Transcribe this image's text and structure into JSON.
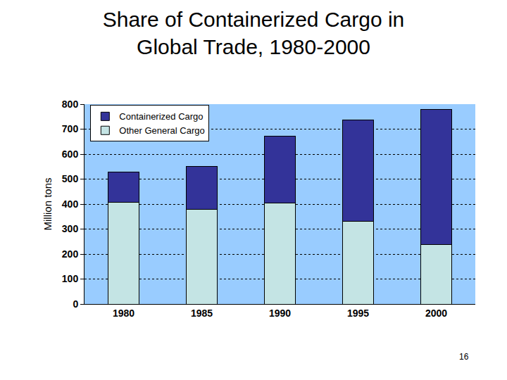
{
  "chart_data": {
    "type": "bar",
    "title": "Share of Containerized Cargo in\nGlobal Trade, 1980-2000",
    "y_label": "Million tons",
    "categories": [
      "1980",
      "1985",
      "1990",
      "1995",
      "2000"
    ],
    "series": [
      {
        "name": "Containerized Cargo",
        "color": "#333399",
        "values": [
          119,
          172,
          269,
          408,
          541
        ]
      },
      {
        "name": "Other General Cargo",
        "color": "#C4E4E4",
        "values": [
          408,
          380,
          403,
          330,
          237
        ]
      }
    ],
    "stacked": true,
    "ylim": [
      0,
      800
    ],
    "yticks": [
      0,
      100,
      200,
      300,
      400,
      500,
      600,
      700,
      800
    ],
    "grid": true,
    "legend": "top-left",
    "annotations": [
      "16"
    ]
  }
}
